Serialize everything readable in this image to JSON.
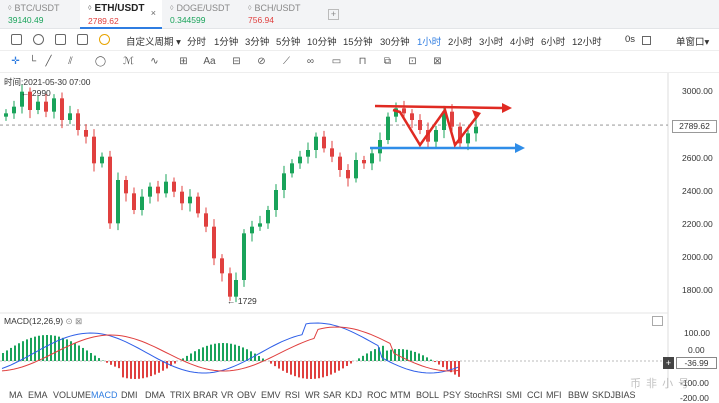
{
  "tabs": [
    {
      "pair": "BTC/USDT",
      "price": "39140.49",
      "dir": "up",
      "active": false
    },
    {
      "pair": "ETH/USDT",
      "price": "2789.62",
      "dir": "down",
      "active": true
    },
    {
      "pair": "DOGE/USDT",
      "price": "0.344599",
      "dir": "up",
      "active": false
    },
    {
      "pair": "BCH/USDT",
      "price": "756.94",
      "dir": "down",
      "active": false
    }
  ],
  "tab_close": "×",
  "tab_add": "+",
  "toolbar": {
    "custom_period": "自定义周期",
    "periods": [
      "分时",
      "1分钟",
      "3分钟",
      "5分钟",
      "10分钟",
      "15分钟",
      "30分钟",
      "1小时",
      "2小时",
      "3小时",
      "4小时",
      "6小时",
      "12小时"
    ],
    "selected_period": "1小时",
    "seconds": "0s",
    "window_mode": "单窗口"
  },
  "info": {
    "time_label": "时间:2021-05-30 07:00",
    "high_marker": "2990",
    "low_marker": "1729",
    "macd_label": "MACD(12,26,9)"
  },
  "price_axis": [
    "3000.00",
    "2800.00",
    "2600.00",
    "2400.00",
    "2200.00",
    "2000.00",
    "1800.00"
  ],
  "current_price": "2789.62",
  "macd_axis": [
    "100.00",
    "0.00",
    "-100.00",
    "-200.00"
  ],
  "macd_current": "-36.99",
  "indicators": [
    "MA",
    "EMA",
    "VOLUME",
    "MACD",
    "DMI",
    "DMA",
    "TRIX",
    "BRAR",
    "VR",
    "OBV",
    "EMV",
    "RSI",
    "WR",
    "SAR",
    "KDJ",
    "ROC",
    "MTM",
    "BOLL",
    "PSY",
    "StochRSI",
    "SMI",
    "CCI",
    "MFI",
    "BBW",
    "SKDJ",
    "BIAS"
  ],
  "selected_indicator": "MACD",
  "watermark": "币 非 小 号",
  "colors": {
    "up": "#19a35a",
    "down": "#e0403f",
    "accent": "#2f7de1",
    "arrow_red": "#e02a22",
    "arrow_blue": "#2f8de8"
  }
}
